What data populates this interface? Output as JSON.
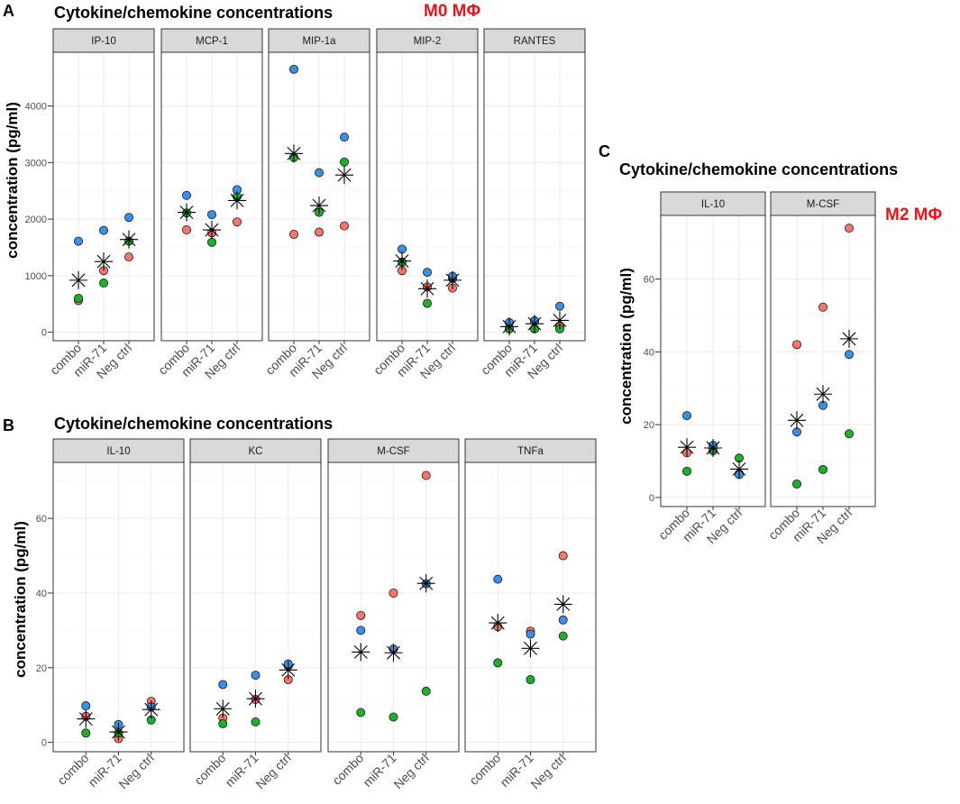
{
  "panel_labels": {
    "a": "A",
    "b": "B",
    "c": "C"
  },
  "titles": {
    "a": "Cytokine/chemokine concentrations",
    "b": "Cytokine/chemokine concentrations",
    "c": "Cytokine/chemokine concentrations"
  },
  "macrophage_labels": {
    "a": "M0 MΦ",
    "c": "M2 MΦ"
  },
  "ylabel": "concentration (pg/ml)",
  "colors": {
    "red": "#f8766d",
    "green": "#1fae2e",
    "blue": "#3b8fe6",
    "star": "#000000",
    "strip_bg": "#d9d9d9",
    "grid": "#ebebeb"
  },
  "chart_data": [
    {
      "id": "a",
      "type": "scatter",
      "title": "Cytokine/chemokine concentrations",
      "ylabel": "concentration (pg/ml)",
      "ylim": [
        -150,
        4950
      ],
      "yticks": [
        0,
        1000,
        2000,
        3000,
        4000
      ],
      "categories": [
        "combo",
        "miR-71",
        "Neg ctrl"
      ],
      "facets": [
        {
          "name": "IP-10",
          "points": {
            "red": [
              560,
              1090,
              1330
            ],
            "green": [
              600,
              870,
              1610
            ],
            "blue": [
              1610,
              1800,
              2030
            ]
          },
          "mean": [
            920,
            1250,
            1640
          ]
        },
        {
          "name": "MCP-1",
          "points": {
            "red": [
              1810,
              1760,
              1950
            ],
            "green": [
              2110,
              1590,
              2400
            ],
            "blue": [
              2420,
              2080,
              2520
            ]
          },
          "mean": [
            2120,
            1810,
            2330
          ]
        },
        {
          "name": "MIP-1a",
          "points": {
            "red": [
              1730,
              1770,
              1880
            ],
            "green": [
              3090,
              2120,
              3010
            ],
            "blue": [
              4650,
              2820,
              3450
            ]
          },
          "mean": [
            3160,
            2240,
            2780
          ]
        },
        {
          "name": "MIP-2",
          "points": {
            "red": [
              1090,
              800,
              780
            ],
            "green": [
              1240,
              510,
              950
            ],
            "blue": [
              1470,
              1060,
              990
            ]
          },
          "mean": [
            1260,
            770,
            920
          ]
        },
        {
          "name": "RANTES",
          "points": {
            "red": [
              60,
              200,
              100
            ],
            "green": [
              60,
              60,
              60
            ],
            "blue": [
              170,
              200,
              460
            ]
          },
          "mean": [
            100,
            150,
            210
          ]
        }
      ]
    },
    {
      "id": "b",
      "type": "scatter",
      "title": "Cytokine/chemokine concentrations",
      "ylabel": "concentration (pg/ml)",
      "ylim": [
        -2.5,
        75
      ],
      "yticks": [
        0,
        20,
        40,
        60
      ],
      "categories": [
        "combo",
        "miR-71",
        "Neg ctrl"
      ],
      "facets": [
        {
          "name": "IL-10",
          "points": {
            "red": [
              7,
              1,
              11
            ],
            "green": [
              2.5,
              2.5,
              6
            ],
            "blue": [
              9.8,
              4.8,
              9.5
            ]
          },
          "mean": [
            6.3,
            2.8,
            8.8
          ]
        },
        {
          "name": "KC",
          "points": {
            "red": [
              6.5,
              11.5,
              16.8
            ],
            "green": [
              5,
              5.5,
              20.5
            ],
            "blue": [
              15.5,
              18,
              21
            ]
          },
          "mean": [
            9,
            11.7,
            19.4
          ]
        },
        {
          "name": "M-CSF",
          "points": {
            "red": [
              34,
              40,
              71.5
            ],
            "green": [
              8,
              6.8,
              13.7
            ],
            "blue": [
              30,
              25,
              42.5
            ]
          },
          "mean": [
            24.2,
            24,
            42.6
          ]
        },
        {
          "name": "TNFa",
          "points": {
            "red": [
              31,
              29.8,
              50
            ],
            "green": [
              21.3,
              16.8,
              28.5
            ],
            "blue": [
              43.7,
              29,
              32.8
            ]
          },
          "mean": [
            32,
            25.2,
            37
          ]
        }
      ]
    },
    {
      "id": "c",
      "type": "scatter",
      "title": "Cytokine/chemokine concentrations",
      "ylabel": "concentration (pg/ml)",
      "ylim": [
        -2.5,
        77.5
      ],
      "yticks": [
        0,
        20,
        40,
        60
      ],
      "categories": [
        "combo",
        "miR-71",
        "Neg ctrl"
      ],
      "facets": [
        {
          "name": "IL-10",
          "points": {
            "red": [
              12.3,
              12.8,
              6.5
            ],
            "green": [
              7.2,
              13.3,
              10.8
            ],
            "blue": [
              22.5,
              14.3,
              6.3
            ]
          },
          "mean": [
            13.8,
            13.6,
            7.8
          ]
        },
        {
          "name": "M-CSF",
          "points": {
            "red": [
              42,
              52.3,
              74
            ],
            "green": [
              3.7,
              7.7,
              17.5
            ],
            "blue": [
              18,
              25.3,
              39.3
            ]
          },
          "mean": [
            21.2,
            28.4,
            43.6
          ]
        }
      ]
    }
  ]
}
